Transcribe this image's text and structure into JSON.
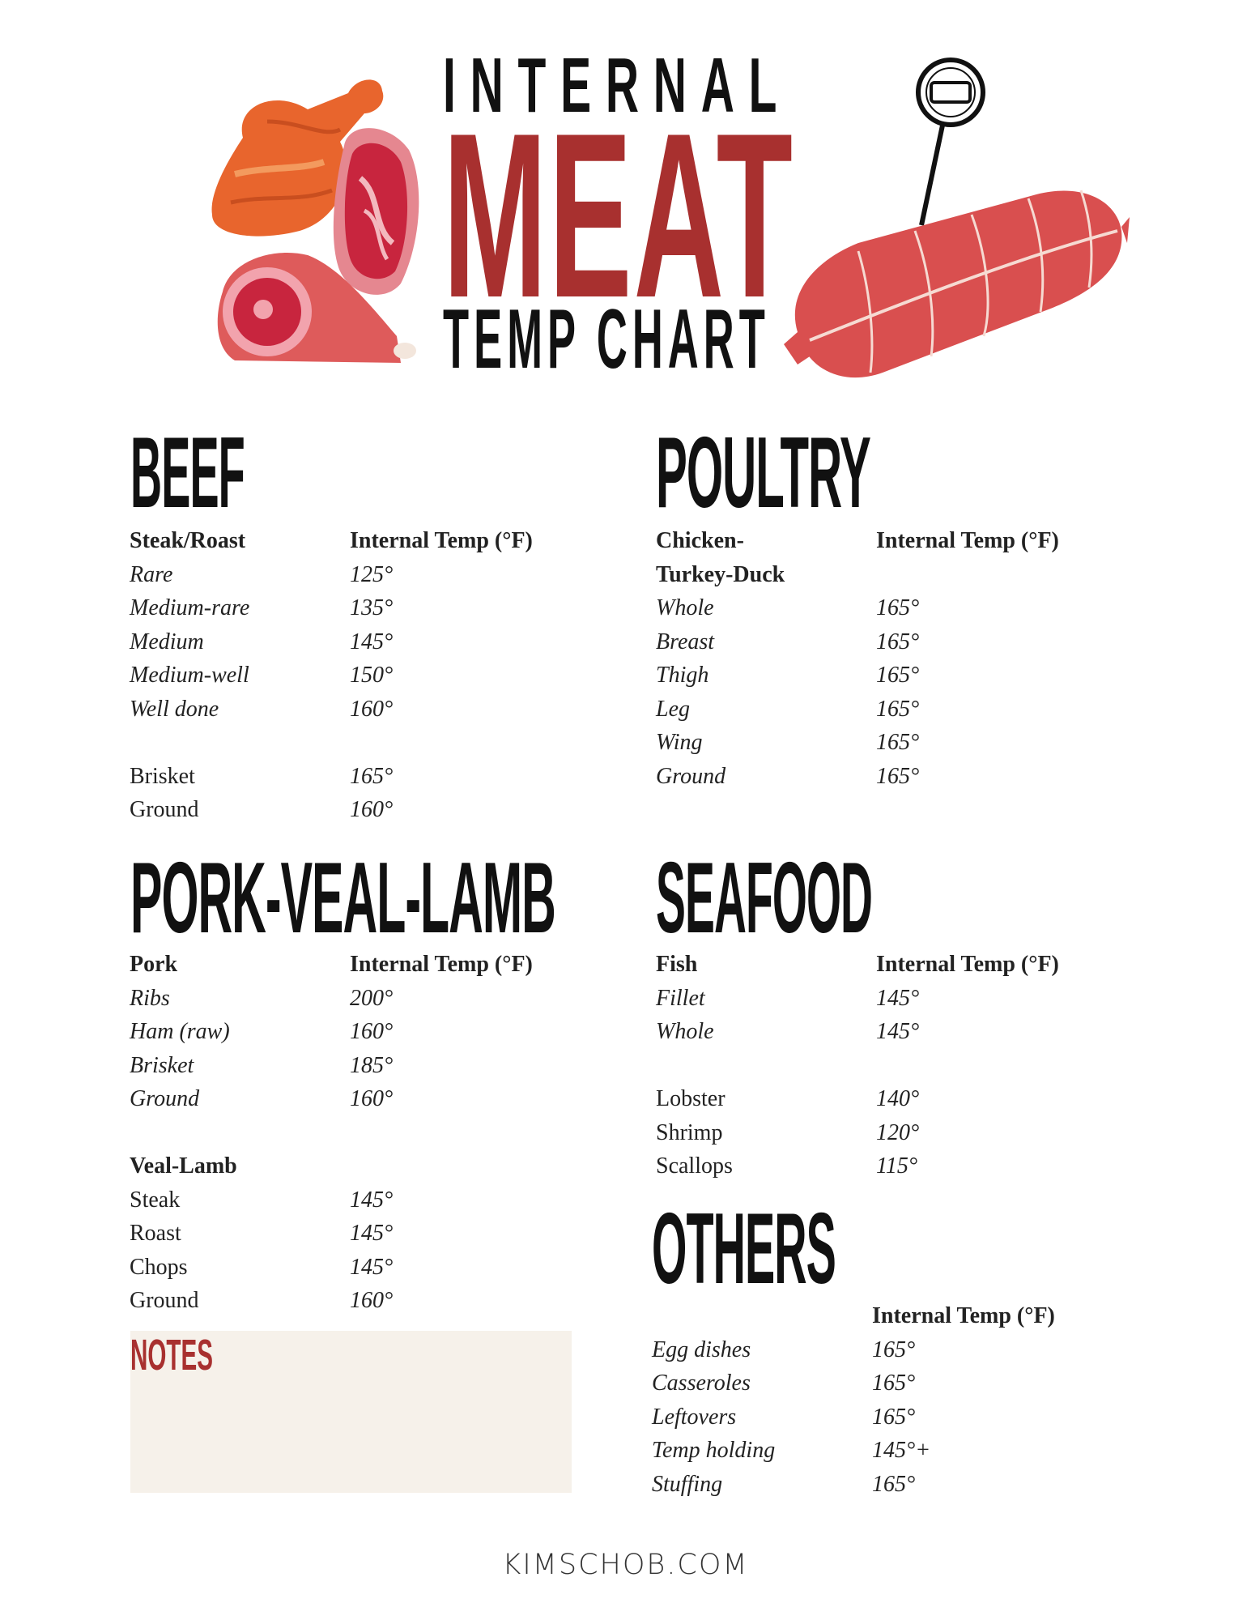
{
  "header": {
    "line1": "INTERNAL",
    "line2": "MEAT",
    "line3": "TEMP CHART"
  },
  "colors": {
    "accent_red": "#a8302f",
    "notes_bg": "#f6f1ea",
    "chicken_orange": "#e8652d",
    "sausage_red": "#d94f4f"
  },
  "icons": [
    "chicken-leg-illustration",
    "steak-illustration",
    "ham-illustration",
    "sausage-illustration",
    "thermometer-icon"
  ],
  "sections": {
    "beef": {
      "title": "BEEF",
      "rows": [
        {
          "type": "hdr",
          "label": "Steak/Roast",
          "value": "Internal Temp (°F)"
        },
        {
          "type": "it",
          "label": "Rare",
          "value": "125°"
        },
        {
          "type": "it",
          "label": "Medium-rare",
          "value": "135°"
        },
        {
          "type": "it",
          "label": "Medium",
          "value": "145°"
        },
        {
          "type": "it",
          "label": "Medium-well",
          "value": "150°"
        },
        {
          "type": "it",
          "label": "Well done",
          "value": "160°"
        },
        {
          "type": "blank"
        },
        {
          "type": "plain",
          "label": "Brisket",
          "value": "165°"
        },
        {
          "type": "plain",
          "label": "Ground",
          "value": "160°"
        }
      ]
    },
    "poultry": {
      "title": "POULTRY",
      "rows": [
        {
          "type": "hdr",
          "label": "Chicken-",
          "value": "Internal Temp (°F)"
        },
        {
          "type": "hdr",
          "label": "Turkey-Duck"
        },
        {
          "type": "it",
          "label": "Whole",
          "value": "165°"
        },
        {
          "type": "it",
          "label": "Breast",
          "value": "165°"
        },
        {
          "type": "it",
          "label": "Thigh",
          "value": "165°"
        },
        {
          "type": "it",
          "label": "Leg",
          "value": "165°"
        },
        {
          "type": "it",
          "label": "Wing",
          "value": "165°"
        },
        {
          "type": "it",
          "label": "Ground",
          "value": "165°"
        }
      ]
    },
    "pork": {
      "title": "PORK-VEAL-LAMB",
      "rows": [
        {
          "type": "hdr",
          "label": "Pork",
          "value": "Internal Temp (°F)"
        },
        {
          "type": "it",
          "label": "Ribs",
          "value": "200°"
        },
        {
          "type": "it",
          "label": "Ham (raw)",
          "value": "160°"
        },
        {
          "type": "it",
          "label": "Brisket",
          "value": "185°"
        },
        {
          "type": "it",
          "label": "Ground",
          "value": "160°"
        },
        {
          "type": "blank"
        },
        {
          "type": "hdr",
          "label": "Veal-Lamb"
        },
        {
          "type": "plain",
          "label": "Steak",
          "value": "145°"
        },
        {
          "type": "plain",
          "label": "Roast",
          "value": "145°"
        },
        {
          "type": "plain",
          "label": "Chops",
          "value": "145°"
        },
        {
          "type": "plain",
          "label": "Ground",
          "value": "160°"
        }
      ]
    },
    "seafood": {
      "title": "SEAFOOD",
      "rows": [
        {
          "type": "hdr",
          "label": "Fish",
          "value": "Internal Temp (°F)"
        },
        {
          "type": "it",
          "label": "Fillet",
          "value": "145°"
        },
        {
          "type": "it",
          "label": "Whole",
          "value": "145°"
        },
        {
          "type": "blank"
        },
        {
          "type": "plain",
          "label": "Lobster",
          "value": "140°"
        },
        {
          "type": "plain",
          "label": "Shrimp",
          "value": "120°"
        },
        {
          "type": "plain",
          "label": "Scallops",
          "value": "115°"
        }
      ]
    },
    "others": {
      "title": "OTHERS",
      "rows": [
        {
          "type": "hdr",
          "label": "",
          "value": "Internal Temp (°F)"
        },
        {
          "type": "it",
          "label": "Egg dishes",
          "value": "165°"
        },
        {
          "type": "it",
          "label": "Casseroles",
          "value": "165°"
        },
        {
          "type": "it",
          "label": "Leftovers",
          "value": "165°"
        },
        {
          "type": "it",
          "label": "Temp holding",
          "value": "145°+"
        },
        {
          "type": "it",
          "label": "Stuffing",
          "value": "165°"
        }
      ]
    }
  },
  "notes": {
    "label": "NOTES"
  },
  "footer": {
    "site": "KIMSCHOB.COM"
  }
}
